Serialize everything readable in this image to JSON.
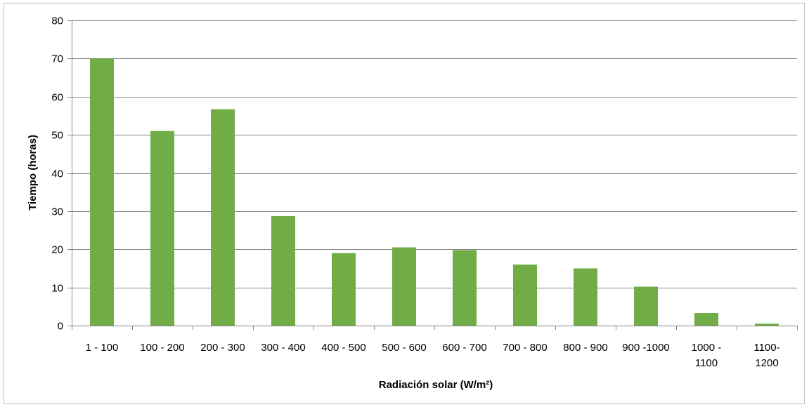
{
  "chart_data": {
    "type": "bar",
    "xlabel": "Radiación solar (W/m²)",
    "ylabel": "Tiempo (horas)",
    "ylim": [
      0,
      80
    ],
    "yticks": [
      0,
      10,
      20,
      30,
      40,
      50,
      60,
      70,
      80
    ],
    "grid": "horizontal",
    "legend": "none",
    "bar_color": "#70ad47",
    "categories": [
      [
        "1 - 100"
      ],
      [
        "100 - 200"
      ],
      [
        "200 - 300"
      ],
      [
        "300 - 400"
      ],
      [
        "400 - 500"
      ],
      [
        "500 - 600"
      ],
      [
        "600 - 700"
      ],
      [
        "700 - 800"
      ],
      [
        "800 - 900"
      ],
      [
        "900 -1000"
      ],
      [
        "1000 -",
        "1100"
      ],
      [
        "1100-",
        "1200"
      ]
    ],
    "values": [
      70,
      51,
      56.7,
      28.7,
      19,
      20.5,
      19.8,
      16,
      15,
      10.2,
      3.3,
      0.5
    ]
  }
}
